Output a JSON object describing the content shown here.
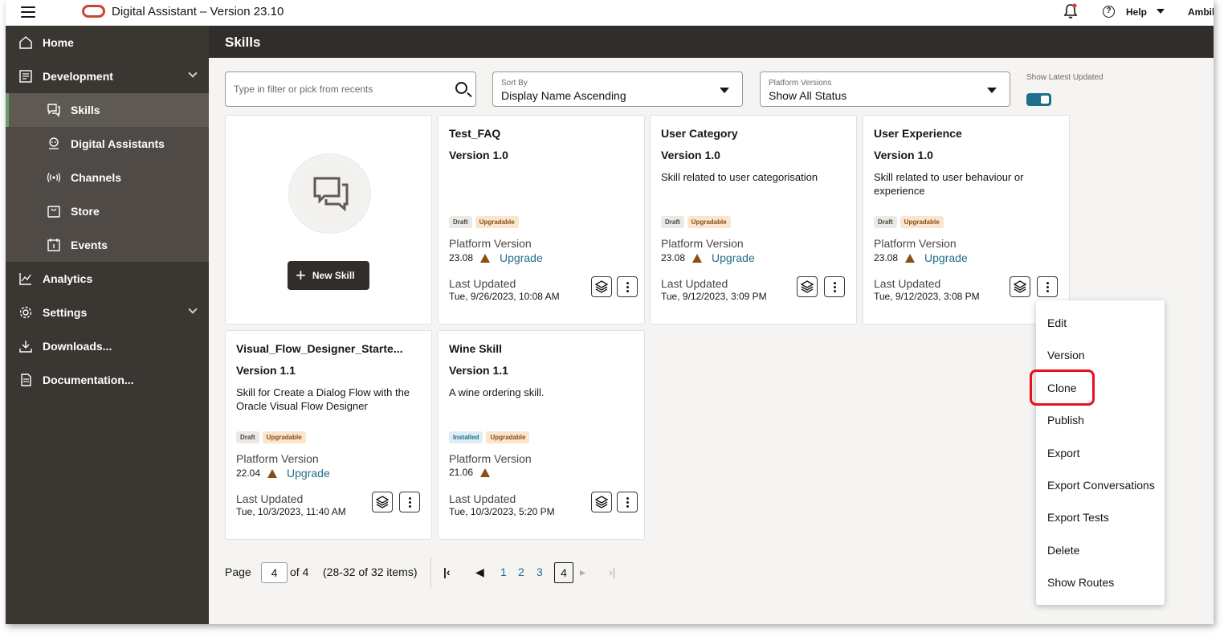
{
  "app": {
    "title": "Digital Assistant – Version 23.10",
    "help": "Help",
    "user": "Ambil"
  },
  "sidebar": {
    "items": [
      {
        "label": "Home"
      },
      {
        "label": "Development"
      },
      {
        "label": "Skills"
      },
      {
        "label": "Digital Assistants"
      },
      {
        "label": "Channels"
      },
      {
        "label": "Store"
      },
      {
        "label": "Events"
      },
      {
        "label": "Analytics"
      },
      {
        "label": "Settings"
      },
      {
        "label": "Downloads..."
      },
      {
        "label": "Documentation..."
      }
    ]
  },
  "page": {
    "title": "Skills"
  },
  "filters": {
    "search_placeholder": "Type in filter or pick from recents",
    "sort_label": "Sort By",
    "sort_value": "Display Name Ascending",
    "platform_label": "Platform Versions",
    "platform_value": "Show All Status",
    "toggle_label": "Show Latest Updated",
    "toggle_on": true
  },
  "new_skill": {
    "label": "New Skill"
  },
  "cards": [
    {
      "name": "Test_FAQ",
      "version": "Version 1.0",
      "description": "",
      "badges": [
        "Draft",
        "Upgradable"
      ],
      "platform_label": "Platform Version",
      "platform_version": "23.08",
      "upgrade": "Upgrade",
      "updated_label": "Last Updated",
      "updated": "Tue, 9/26/2023, 10:08 AM"
    },
    {
      "name": "User Category",
      "version": "Version 1.0",
      "description": "Skill related to user categorisation",
      "badges": [
        "Draft",
        "Upgradable"
      ],
      "platform_label": "Platform Version",
      "platform_version": "23.08",
      "upgrade": "Upgrade",
      "updated_label": "Last Updated",
      "updated": "Tue, 9/12/2023, 3:09 PM"
    },
    {
      "name": "User Experience",
      "version": "Version 1.0",
      "description": "Skill related to user behaviour or experience",
      "badges": [
        "Draft",
        "Upgradable"
      ],
      "platform_label": "Platform Version",
      "platform_version": "23.08",
      "upgrade": "Upgrade",
      "updated_label": "Last Updated",
      "updated": "Tue, 9/12/2023, 3:08 PM"
    },
    {
      "name": "Visual_Flow_Designer_Starte...",
      "version": "Version 1.1",
      "description": "Skill for Create a Dialog Flow with the Oracle Visual Flow Designer",
      "badges": [
        "Draft",
        "Upgradable"
      ],
      "platform_label": "Platform Version",
      "platform_version": "22.04",
      "upgrade": "Upgrade",
      "updated_label": "Last Updated",
      "updated": "Tue, 10/3/2023, 11:40 AM"
    },
    {
      "name": "Wine Skill",
      "version": "Version 1.1",
      "description": "A wine ordering skill.",
      "badges": [
        "Installed",
        "Upgradable"
      ],
      "platform_label": "Platform Version",
      "platform_version": "21.06",
      "upgrade": "",
      "updated_label": "Last Updated",
      "updated": "Tue, 10/3/2023, 5:20 PM"
    }
  ],
  "menu": {
    "items": [
      "Edit",
      "Version",
      "Clone",
      "Publish",
      "Export",
      "Export Conversations",
      "Export Tests",
      "Delete",
      "Show Routes"
    ],
    "highlighted": "Clone"
  },
  "pagination": {
    "page_label": "Page",
    "current": "4",
    "of_label": "of 4",
    "range": "(28-32 of 32 items)",
    "pages": [
      "1",
      "2",
      "3",
      "4"
    ]
  },
  "colors": {
    "accent": "#1e6e8c",
    "sidebar": "#3a3632",
    "header": "#312d2a",
    "highlight": "#e8101e",
    "brand": "#c74634"
  }
}
